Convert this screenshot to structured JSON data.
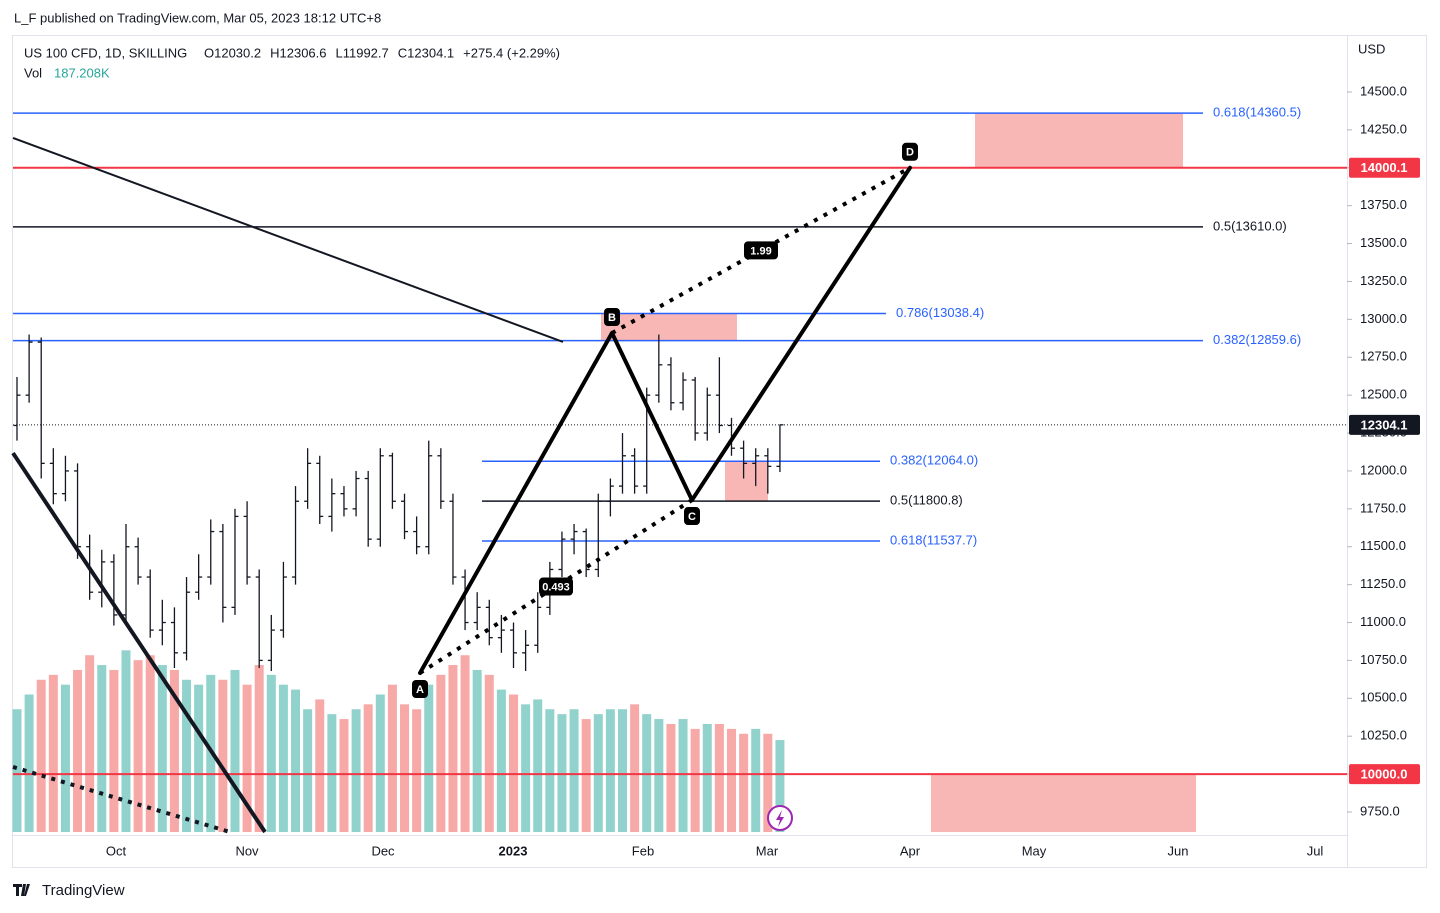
{
  "chart_data": {
    "type": "ohlc",
    "publisher": "L_F published on TradingView.com, Mar 05, 2023 18:12 UTC+8",
    "title": "US 100 CFD, 1D, SKILLING",
    "ohlc_labels": [
      "O12030.2",
      "H12306.6",
      "L11992.7",
      "C12304.1"
    ],
    "change": "+275.4 (+2.29%)",
    "vol_title": "Vol",
    "vol_value": "187.208K",
    "currency": "USD",
    "footer": "TradingView",
    "bar_color": "#131722",
    "up_volume_color": "#92d2cc",
    "down_volume_color": "#f7a9a7",
    "ylim": [
      9618,
      14876
    ],
    "yticks": [
      {
        "value": 9750,
        "label": "9750.0"
      },
      {
        "value": 10000,
        "label": "10000.0"
      },
      {
        "value": 10250,
        "label": "10250.0"
      },
      {
        "value": 10500,
        "label": "10500.0"
      },
      {
        "value": 10750,
        "label": "10750.0"
      },
      {
        "value": 11000,
        "label": "11000.0"
      },
      {
        "value": 11250,
        "label": "11250.0"
      },
      {
        "value": 11500,
        "label": "11500.0"
      },
      {
        "value": 11750,
        "label": "11750.0"
      },
      {
        "value": 12000,
        "label": "12000.0"
      },
      {
        "value": 12250,
        "label": "12250.0"
      },
      {
        "value": 12500,
        "label": "12500.0"
      },
      {
        "value": 12750,
        "label": "12750.0"
      },
      {
        "value": 13000,
        "label": "13000.0"
      },
      {
        "value": 13250,
        "label": "13250.0"
      },
      {
        "value": 13500,
        "label": "13500.0"
      },
      {
        "value": 13750,
        "label": "13750.0"
      },
      {
        "value": 14000,
        "label": "14000.0"
      },
      {
        "value": 14250,
        "label": "14250.0"
      },
      {
        "value": 14500,
        "label": "14500.0"
      }
    ],
    "x_labels": [
      "Oct",
      "Nov",
      "Dec",
      "2023",
      "Feb",
      "Mar",
      "Apr",
      "May",
      "Jun",
      "Jul"
    ],
    "ohlc": [
      [
        12300,
        12620,
        12200,
        12500
      ],
      [
        12500,
        12900,
        12450,
        12850
      ],
      [
        12850,
        12880,
        11950,
        12050
      ],
      [
        12050,
        12150,
        11780,
        11850
      ],
      [
        11850,
        12100,
        11800,
        12000
      ],
      [
        12000,
        12050,
        11420,
        11500
      ],
      [
        11500,
        11580,
        11150,
        11200
      ],
      [
        11200,
        11480,
        11100,
        11400
      ],
      [
        11400,
        11450,
        10980,
        11050
      ],
      [
        11050,
        11650,
        11000,
        11500
      ],
      [
        11500,
        11560,
        11250,
        11300
      ],
      [
        11300,
        11350,
        10900,
        10950
      ],
      [
        10950,
        11150,
        10850,
        11000
      ],
      [
        11000,
        11100,
        10700,
        10800
      ],
      [
        10800,
        11300,
        10750,
        11200
      ],
      [
        11200,
        11450,
        11150,
        11300
      ],
      [
        11300,
        11680,
        11250,
        11600
      ],
      [
        11600,
        11650,
        11000,
        11100
      ],
      [
        11100,
        11750,
        11050,
        11700
      ],
      [
        11700,
        11800,
        11250,
        11300
      ],
      [
        11300,
        11350,
        10700,
        10750
      ],
      [
        10750,
        11050,
        10680,
        10950
      ],
      [
        10950,
        11400,
        10900,
        11300
      ],
      [
        11300,
        11900,
        11250,
        11800
      ],
      [
        11800,
        12150,
        11750,
        12050
      ],
      [
        12050,
        12100,
        11650,
        11700
      ],
      [
        11700,
        11950,
        11600,
        11850
      ],
      [
        11850,
        11900,
        11700,
        11750
      ],
      [
        11750,
        12000,
        11700,
        11950
      ],
      [
        11950,
        12000,
        11500,
        11550
      ],
      [
        11550,
        12150,
        11500,
        12100
      ],
      [
        12100,
        12120,
        11750,
        11800
      ],
      [
        11800,
        11850,
        11550,
        11600
      ],
      [
        11600,
        11700,
        11450,
        11500
      ],
      [
        11500,
        12200,
        11450,
        12100
      ],
      [
        12100,
        12150,
        11750,
        11800
      ],
      [
        11800,
        11850,
        11250,
        11300
      ],
      [
        11300,
        11350,
        10950,
        11000
      ],
      [
        11000,
        11200,
        10950,
        11100
      ],
      [
        11100,
        11150,
        10850,
        10900
      ],
      [
        10900,
        11050,
        10800,
        10950
      ],
      [
        10950,
        11000,
        10700,
        10800
      ],
      [
        10800,
        10950,
        10680,
        10850
      ],
      [
        10850,
        11200,
        10800,
        11100
      ],
      [
        11100,
        11400,
        11050,
        11350
      ],
      [
        11350,
        11600,
        11300,
        11550
      ],
      [
        11550,
        11650,
        11450,
        11600
      ],
      [
        11600,
        11620,
        11300,
        11350
      ],
      [
        11350,
        11850,
        11300,
        11800
      ],
      [
        11800,
        11950,
        11700,
        11900
      ],
      [
        11900,
        12250,
        11850,
        12100
      ],
      [
        12100,
        12150,
        11850,
        11900
      ],
      [
        11900,
        12550,
        11850,
        12500
      ],
      [
        12500,
        12900,
        12450,
        12700
      ],
      [
        12700,
        12750,
        12400,
        12450
      ],
      [
        12450,
        12650,
        12400,
        12600
      ],
      [
        12600,
        12620,
        12200,
        12250
      ],
      [
        12250,
        12550,
        12200,
        12500
      ],
      [
        12500,
        12750,
        12250,
        12300
      ],
      [
        12300,
        12350,
        12100,
        12150
      ],
      [
        12150,
        12200,
        11950,
        12050
      ],
      [
        12050,
        12150,
        11900,
        12100
      ],
      [
        12100,
        12150,
        11850,
        12030.2
      ],
      [
        12030.2,
        12306.6,
        11992.7,
        12304.1
      ]
    ],
    "volume": [
      250,
      280,
      310,
      320,
      300,
      330,
      360,
      340,
      330,
      370,
      350,
      360,
      340,
      330,
      310,
      300,
      320,
      310,
      330,
      300,
      340,
      320,
      300,
      290,
      250,
      270,
      240,
      230,
      250,
      260,
      280,
      300,
      260,
      250,
      300,
      320,
      340,
      360,
      330,
      320,
      290,
      280,
      260,
      270,
      250,
      240,
      250,
      230,
      240,
      250,
      250,
      260,
      240,
      230,
      220,
      230,
      210,
      220,
      220,
      210,
      200,
      210,
      200,
      187.208
    ],
    "volume_ylim": [
      0,
      1623
    ],
    "levels": [
      {
        "value": 14360.5,
        "label": "0.618(14360.5)",
        "color": "#2962ff"
      },
      {
        "value": 13610,
        "label": "0.5(13610.0)",
        "color": "#131722"
      },
      {
        "value": 13038.4,
        "label": "0.786(13038.4)",
        "color": "#2962ff"
      },
      {
        "value": 12859.6,
        "label": "0.382(12859.6)",
        "color": "#2962ff"
      },
      {
        "value": 12064,
        "label": "0.382(12064.0)",
        "color": "#2962ff"
      },
      {
        "value": 11800.8,
        "label": "0.5(11800.8)",
        "color": "#131722"
      },
      {
        "value": 11537.7,
        "label": "0.618(11537.7)",
        "color": "#2962ff"
      }
    ],
    "price_tags": [
      {
        "value": 14000.1,
        "color": "#f23645"
      },
      {
        "value": 10000,
        "label": "10000.0",
        "color": "#f23645"
      },
      {
        "value": 12304.1,
        "color": "#131722"
      }
    ],
    "zones": [
      {
        "top": 14360.5,
        "bottom": 14000.1
      },
      {
        "top": 13038.4,
        "bottom": 12859.6
      },
      {
        "top": 12064,
        "bottom": 11800.8
      },
      {
        "top": 10000,
        "bottom": 9618
      }
    ],
    "zone_color": "#f7a9a7",
    "trendlines": [
      {
        "start": 14197,
        "end": 12851
      },
      {
        "start": 12118,
        "end": 9618
      },
      {
        "start": 10047,
        "end": 9618
      }
    ],
    "pattern": {
      "points": [
        {
          "label": "A",
          "value": 10667
        },
        {
          "label": "B",
          "value": 12910
        },
        {
          "label": "C",
          "value": 11808
        },
        {
          "label": "D",
          "value": 14000.1
        }
      ],
      "ratios": [
        "1.99",
        "0.493"
      ]
    }
  }
}
